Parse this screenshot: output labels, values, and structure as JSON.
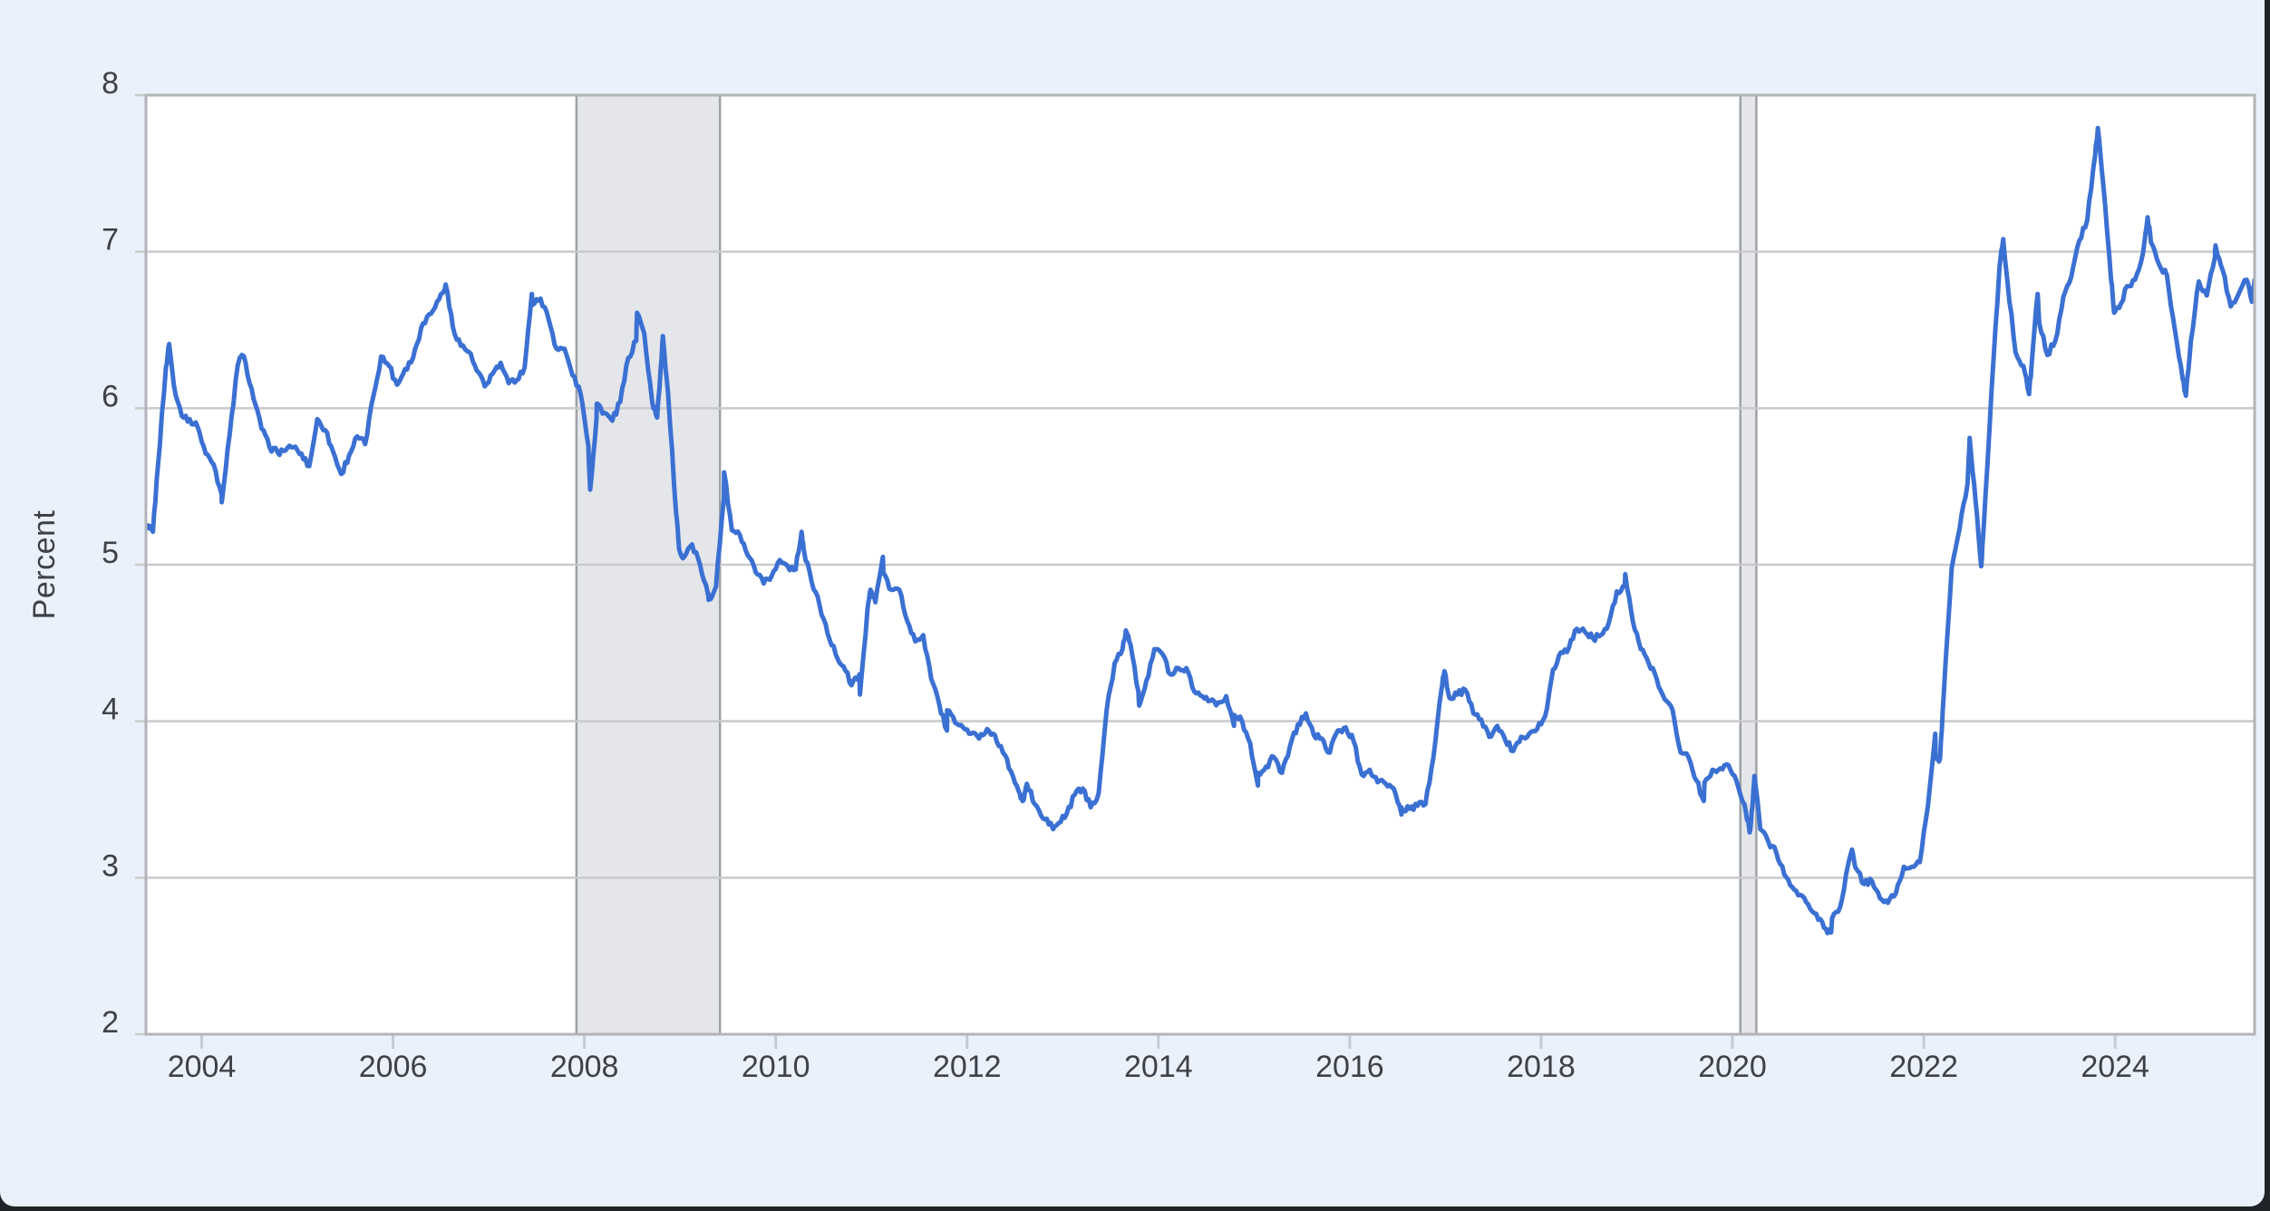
{
  "window": {
    "background_color": "#eaf1fa",
    "frame_color": "#202327"
  },
  "chart_data": {
    "type": "line",
    "title": "",
    "ylabel": "Percent",
    "xlim": [
      2003.417,
      2025.458
    ],
    "ylim": [
      2,
      8
    ],
    "y_ticks": [
      2,
      3,
      4,
      5,
      6,
      7,
      8
    ],
    "x_ticks": [
      2004,
      2006,
      2008,
      2010,
      2012,
      2014,
      2016,
      2018,
      2020,
      2022,
      2024
    ],
    "grid": true,
    "legend_position": "none",
    "colors": {
      "line": "#3b70d3",
      "grid": "#c9cacc",
      "plot_border": "#b2b4b8",
      "plot_background": "#ffffff",
      "tick_label": "#3f4147",
      "axis_tick": "#c3cbd8",
      "recession_band_fill": "#e4e6ea",
      "recession_band_edge": "#9da1a7"
    },
    "recession_bands": [
      [
        2007.917,
        2009.417
      ],
      [
        2020.083,
        2020.25
      ]
    ],
    "series": {
      "units": "Percent",
      "frequency": "monthly_with_extremes",
      "start_year": 2003,
      "start_month": 6,
      "monthly_values": [
        5.23,
        5.63,
        6.26,
        6.15,
        5.95,
        5.93,
        5.88,
        5.71,
        5.64,
        5.45,
        5.83,
        6.27,
        6.29,
        6.06,
        5.87,
        5.75,
        5.72,
        5.73,
        5.75,
        5.71,
        5.63,
        5.93,
        5.86,
        5.72,
        5.58,
        5.7,
        5.82,
        5.77,
        6.07,
        6.33,
        6.27,
        6.15,
        6.25,
        6.32,
        6.51,
        6.6,
        6.68,
        6.76,
        6.52,
        6.4,
        6.36,
        6.24,
        6.14,
        6.22,
        6.29,
        6.16,
        6.18,
        6.26,
        6.66,
        6.7,
        6.57,
        6.38,
        6.38,
        6.21,
        6.1,
        5.76,
        5.92,
        5.97,
        5.92,
        6.04,
        6.32,
        6.43,
        6.48,
        6.04,
        6.2,
        6.09,
        5.33,
        5.05,
        5.13,
        5.0,
        4.81,
        4.86,
        5.42,
        5.22,
        5.19,
        5.06,
        4.95,
        4.88,
        4.93,
        5.03,
        4.99,
        4.97,
        5.1,
        4.89,
        4.74,
        4.56,
        4.43,
        4.35,
        4.23,
        4.3,
        4.71,
        4.76,
        4.95,
        4.84,
        4.84,
        4.64,
        4.51,
        4.55,
        4.27,
        4.11,
        4.07,
        3.99,
        3.96,
        3.92,
        3.89,
        3.95,
        3.91,
        3.8,
        3.68,
        3.55,
        3.6,
        3.47,
        3.38,
        3.35,
        3.35,
        3.41,
        3.53,
        3.57,
        3.45,
        3.54,
        4.07,
        4.37,
        4.46,
        4.49,
        4.19,
        4.26,
        4.46,
        4.43,
        4.3,
        4.34,
        4.34,
        4.19,
        4.16,
        4.13,
        4.12,
        4.16,
        4.04,
        4.0,
        3.86,
        3.67,
        3.71,
        3.77,
        3.67,
        3.84,
        3.98,
        4.05,
        3.91,
        3.89,
        3.8,
        3.94,
        3.96,
        3.87,
        3.66,
        3.69,
        3.61,
        3.6,
        3.57,
        3.44,
        3.44,
        3.46,
        3.47,
        3.77,
        4.2,
        4.15,
        4.17,
        4.2,
        4.05,
        4.01,
        3.9,
        3.97,
        3.88,
        3.81,
        3.9,
        3.92,
        3.95,
        4.03,
        4.33,
        4.44,
        4.47,
        4.59,
        4.57,
        4.53,
        4.55,
        4.63,
        4.83,
        4.87,
        4.64,
        4.46,
        4.37,
        4.27,
        4.14,
        4.07,
        3.8,
        3.77,
        3.62,
        3.61,
        3.69,
        3.7,
        3.72,
        3.62,
        3.47,
        3.45,
        3.31,
        3.23,
        3.16,
        3.02,
        2.94,
        2.89,
        2.83,
        2.77,
        2.68,
        2.74,
        2.81,
        3.08,
        3.06,
        2.96,
        2.98,
        2.87,
        2.84,
        2.9,
        3.07,
        3.07,
        3.1,
        3.45,
        3.76,
        4.17,
        4.98,
        5.23,
        5.52,
        5.41,
        5.22,
        6.11,
        6.9,
        6.81,
        6.36,
        6.27,
        6.26,
        6.54,
        6.34,
        6.43,
        6.71,
        6.84,
        7.07,
        7.2,
        7.62,
        7.44,
        6.82,
        6.64,
        6.78,
        6.82,
        6.99,
        7.06,
        6.92,
        6.85,
        6.5,
        6.18,
        6.43,
        6.81,
        6.72,
        6.96,
        6.88,
        6.65,
        6.73,
        6.82,
        6.82
      ],
      "extra_points": [
        [
          2003.42,
          5.23
        ],
        [
          2003.49,
          5.21
        ],
        [
          2003.66,
          6.41
        ],
        [
          2004.21,
          5.4
        ],
        [
          2004.42,
          6.34
        ],
        [
          2006.55,
          6.79
        ],
        [
          2007.45,
          6.73
        ],
        [
          2008.06,
          5.48
        ],
        [
          2008.13,
          6.03
        ],
        [
          2008.55,
          6.61
        ],
        [
          2008.76,
          5.94
        ],
        [
          2008.82,
          6.46
        ],
        [
          2008.99,
          5.1
        ],
        [
          2009.3,
          4.78
        ],
        [
          2009.46,
          5.59
        ],
        [
          2010.27,
          5.21
        ],
        [
          2010.88,
          4.17
        ],
        [
          2010.99,
          4.84
        ],
        [
          2011.12,
          5.05
        ],
        [
          2011.79,
          3.94
        ],
        [
          2012.58,
          3.49
        ],
        [
          2012.9,
          3.31
        ],
        [
          2013.66,
          4.58
        ],
        [
          2013.8,
          4.1
        ],
        [
          2014.79,
          3.97
        ],
        [
          2015.04,
          3.59
        ],
        [
          2016.54,
          3.41
        ],
        [
          2016.99,
          4.32
        ],
        [
          2018.88,
          4.94
        ],
        [
          2019.7,
          3.49
        ],
        [
          2020.18,
          3.29
        ],
        [
          2020.23,
          3.65
        ],
        [
          2021.03,
          2.65
        ],
        [
          2021.25,
          3.18
        ],
        [
          2022.12,
          3.92
        ],
        [
          2022.17,
          3.76
        ],
        [
          2022.48,
          5.81
        ],
        [
          2022.6,
          4.99
        ],
        [
          2022.83,
          7.08
        ],
        [
          2023.1,
          6.09
        ],
        [
          2023.19,
          6.73
        ],
        [
          2023.82,
          7.79
        ],
        [
          2023.99,
          6.61
        ],
        [
          2024.34,
          7.22
        ],
        [
          2024.74,
          6.08
        ],
        [
          2025.05,
          7.04
        ],
        [
          2025.43,
          6.68
        ]
      ],
      "visual_noise": 0.022
    }
  }
}
